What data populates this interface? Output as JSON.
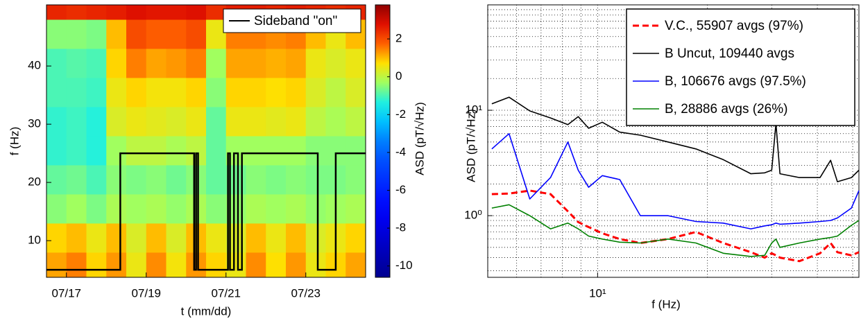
{
  "chart_data": [
    {
      "type": "heatmap",
      "xlabel": "t (mm/dd)",
      "ylabel": "f (Hz)",
      "colorbar_label": "ASD (pT/√Hz)",
      "xlim": [
        16.5,
        24.5
      ],
      "ylim": [
        3.7,
        50.5
      ],
      "xticks": [
        {
          "value": 17,
          "label": "07/17"
        },
        {
          "value": 19,
          "label": "07/19"
        },
        {
          "value": 21,
          "label": "07/21"
        },
        {
          "value": 23,
          "label": "07/23"
        }
      ],
      "yticks": [
        10,
        20,
        30,
        40
      ],
      "xbins": [
        16.5,
        17,
        17.5,
        18,
        18.5,
        19,
        19.5,
        20,
        20.5,
        21,
        21.5,
        22,
        22.5,
        23,
        23.5,
        24,
        24.5
      ],
      "ybins": [
        3.7,
        8,
        13,
        18,
        23,
        28,
        33,
        38,
        43,
        48,
        50.5
      ],
      "z": [
        [
          1.2,
          1.5,
          0.8,
          1.3,
          0.5,
          1.4,
          0.6,
          1.3,
          0.8,
          0.5,
          1.4,
          0.7,
          1.3,
          0.5,
          0.8,
          1.2
        ],
        [
          0.8,
          1.0,
          0.5,
          1.0,
          0.3,
          1.0,
          0.3,
          1.0,
          0.5,
          0.3,
          1.0,
          0.5,
          1.0,
          0.3,
          0.5,
          0.8
        ],
        [
          -0.5,
          -0.3,
          -0.6,
          -0.2,
          -0.3,
          -0.2,
          -0.4,
          -0.2,
          -0.5,
          -0.4,
          -0.2,
          -0.3,
          -0.2,
          -0.4,
          -0.3,
          -0.2
        ],
        [
          -0.8,
          -0.7,
          -1.0,
          -0.5,
          -0.6,
          -0.5,
          -0.7,
          -0.5,
          -0.8,
          -0.7,
          -0.5,
          -0.6,
          -0.5,
          -0.6,
          -0.6,
          -0.5
        ],
        [
          -1.2,
          -1.1,
          -1.3,
          -0.3,
          0,
          0,
          -0.2,
          0,
          -0.8,
          -0.3,
          -0.3,
          -0.3,
          -0.3,
          -0.5,
          -0.5,
          -0.5
        ],
        [
          -1.2,
          -1.1,
          -1.3,
          0.3,
          0.5,
          0.4,
          0.3,
          0.5,
          -0.8,
          0.5,
          0.5,
          0.4,
          0.5,
          0,
          -0.2,
          0
        ],
        [
          -1.0,
          -1.0,
          -1.1,
          0.5,
          0.8,
          0.6,
          0.6,
          0.8,
          -0.5,
          0.8,
          0.8,
          0.7,
          0.8,
          0.3,
          0,
          0.3
        ],
        [
          -1.0,
          -0.9,
          -1.0,
          0.8,
          1.5,
          1.2,
          1.3,
          1.5,
          -0.3,
          1.2,
          1.2,
          1.1,
          1.2,
          0.5,
          0.3,
          0.5
        ],
        [
          -0.5,
          -0.5,
          -0.6,
          1.0,
          2.0,
          1.8,
          1.8,
          2.0,
          0.5,
          1.5,
          1.5,
          1.4,
          1.5,
          1.0,
          0.5,
          1.0
        ],
        [
          2.5,
          2.4,
          2.5,
          2.6,
          2.8,
          2.7,
          2.7,
          2.8,
          2.4,
          2.6,
          2.6,
          2.5,
          2.6,
          2.5,
          2.4,
          2.5
        ]
      ],
      "zlim": [
        -10.6,
        3.8
      ],
      "zticks": [
        2,
        0,
        -2,
        -4,
        -6,
        -8,
        -10
      ],
      "colormap": [
        "#000090",
        "#0000b0",
        "#0000d0",
        "#0000f0",
        "#0010ff",
        "#0030ff",
        "#0050ff",
        "#0080ff",
        "#00c0ff",
        "#20f0e0",
        "#a0ff60",
        "#ffe000",
        "#ff6000",
        "#e01000",
        "#900000"
      ],
      "legend": "upper right",
      "series": [
        {
          "name": "Sideband \"on\"",
          "color": "#000000",
          "x": [
            16.5,
            18.35,
            18.35,
            20.2,
            20.2,
            20.25,
            20.25,
            20.3,
            20.3,
            21.05,
            21.05,
            21.1,
            21.1,
            21.2,
            21.2,
            21.3,
            21.3,
            21.4,
            21.4,
            23.3,
            23.3,
            23.75,
            23.75,
            24.5
          ],
          "values": [
            5,
            5,
            25,
            25,
            5,
            5,
            25,
            25,
            5,
            5,
            25,
            25,
            5,
            5,
            25,
            25,
            5,
            5,
            25,
            25,
            5,
            5,
            25,
            25
          ]
        }
      ]
    },
    {
      "type": "line",
      "xlabel": "f (Hz)",
      "ylabel": "ASD (pT/√Hz)",
      "xscale": "log",
      "yscale": "log",
      "xlim": [
        5,
        52
      ],
      "ylim": [
        0.26,
        100
      ],
      "xticks": [
        {
          "value": 10,
          "label": "10¹"
        }
      ],
      "yticks": [
        {
          "value": 1,
          "label": "10⁰"
        },
        {
          "value": 10,
          "label": "10¹"
        }
      ],
      "xminor": [
        6,
        7,
        8,
        9,
        20,
        30,
        40,
        50
      ],
      "yminor": [
        0.3,
        0.4,
        0.5,
        0.6,
        0.7,
        0.8,
        0.9,
        2,
        3,
        4,
        5,
        6,
        7,
        8,
        9,
        20,
        30,
        40,
        50,
        60,
        70,
        80,
        90
      ],
      "grid": true,
      "legend": "upper right",
      "x": [
        5.13,
        5.72,
        6.52,
        7.43,
        8.29,
        8.85,
        9.45,
        10.3,
        11.5,
        13.1,
        15.6,
        18.6,
        22.1,
        26.3,
        28.7,
        30.0,
        30.8,
        31.6,
        35.7,
        40.7,
        43.5,
        45.4,
        49.6,
        52
      ],
      "series": [
        {
          "name": "V.C., 55907 avgs (97%)",
          "color": "#ff0000",
          "linestyle": "dashed",
          "values": [
            1.6,
            1.62,
            1.73,
            1.6,
            1.1,
            0.87,
            0.78,
            0.68,
            0.6,
            0.55,
            0.6,
            0.7,
            0.55,
            0.45,
            0.4,
            0.44,
            0.42,
            0.4,
            0.37,
            0.44,
            0.55,
            0.45,
            0.42,
            0.45
          ]
        },
        {
          "name": "B Uncut, 109440 avgs",
          "color": "#000000",
          "linestyle": "solid",
          "values": [
            11.5,
            13.3,
            9.85,
            8.45,
            7.3,
            8.7,
            6.75,
            7.7,
            6.2,
            5.8,
            5.0,
            4.3,
            3.4,
            2.5,
            2.55,
            2.7,
            7.5,
            2.5,
            2.3,
            2.3,
            3.35,
            2.1,
            2.3,
            2.7
          ]
        },
        {
          "name": "B, 106676 avgs (97.5%)",
          "color": "#0000ff",
          "linestyle": "solid",
          "values": [
            4.3,
            6.0,
            1.44,
            2.3,
            5.0,
            2.7,
            1.86,
            2.4,
            2.2,
            1.0,
            1.0,
            0.88,
            0.85,
            0.75,
            0.8,
            0.82,
            0.85,
            0.83,
            0.85,
            0.88,
            0.9,
            0.95,
            1.18,
            1.73
          ]
        },
        {
          "name": "B, 28886 avgs (26%)",
          "color": "#008000",
          "linestyle": "solid",
          "values": [
            1.18,
            1.27,
            1.0,
            0.75,
            0.85,
            0.75,
            0.64,
            0.6,
            0.56,
            0.55,
            0.6,
            0.55,
            0.44,
            0.41,
            0.42,
            0.55,
            0.6,
            0.5,
            0.55,
            0.6,
            0.62,
            0.64,
            0.81,
            0.9
          ]
        }
      ]
    }
  ]
}
